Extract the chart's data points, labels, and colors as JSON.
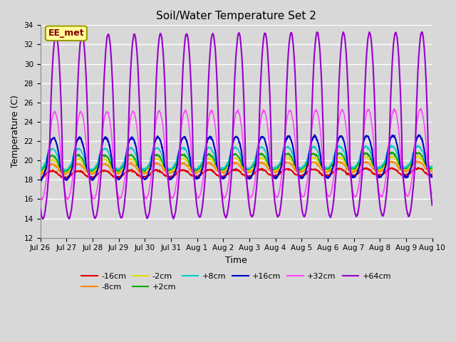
{
  "title": "Soil/Water Temperature Set 2",
  "xlabel": "Time",
  "ylabel": "Temperature (C)",
  "ylim": [
    12,
    34
  ],
  "yticks": [
    12,
    14,
    16,
    18,
    20,
    22,
    24,
    26,
    28,
    30,
    32,
    34
  ],
  "background_color": "#d8d8d8",
  "plot_bg_color": "#d8d8d8",
  "annotation_text": "EE_met",
  "annotation_bg": "#ffff99",
  "annotation_border": "#999900",
  "series_order": [
    "-16cm",
    "-8cm",
    "-2cm",
    "+2cm",
    "+8cm",
    "+16cm",
    "+32cm",
    "+64cm"
  ],
  "series": {
    "-16cm": {
      "color": "#dd0000",
      "base": 18.5,
      "amp_up": 0.4,
      "amp_down": 0.3,
      "period": 1.0,
      "phase_shift": 0.05
    },
    "-8cm": {
      "color": "#ff8800",
      "base": 19.0,
      "amp_up": 0.6,
      "amp_down": 0.4,
      "period": 1.0,
      "phase_shift": 0.05
    },
    "-2cm": {
      "color": "#dddd00",
      "base": 19.3,
      "amp_up": 0.8,
      "amp_down": 0.5,
      "period": 1.0,
      "phase_shift": 0.05
    },
    "+2cm": {
      "color": "#00aa00",
      "base": 19.5,
      "amp_up": 1.0,
      "amp_down": 0.6,
      "period": 1.0,
      "phase_shift": 0.05
    },
    "+8cm": {
      "color": "#00cccc",
      "base": 19.8,
      "amp_up": 1.4,
      "amp_down": 0.8,
      "period": 1.0,
      "phase_shift": 0.04
    },
    "+16cm": {
      "color": "#0000cc",
      "base": 19.5,
      "amp_up": 2.8,
      "amp_down": 1.5,
      "period": 1.0,
      "phase_shift": 0.0
    },
    "+32cm": {
      "color": "#ff44ff",
      "base": 19.5,
      "amp_up": 5.5,
      "amp_down": 3.5,
      "period": 1.0,
      "phase_shift": -0.05
    },
    "+64cm": {
      "color": "#9900cc",
      "base": 19.5,
      "amp_up": 13.5,
      "amp_down": 5.5,
      "period": 1.0,
      "phase_shift": -0.1
    }
  },
  "x_tick_labels": [
    "Jul 26",
    "Jul 27",
    "Jul 28",
    "Jul 29",
    "Jul 30",
    "Jul 31",
    "Aug 1",
    "Aug 2",
    "Aug 3",
    "Aug 4",
    "Aug 5",
    "Aug 6",
    "Aug 7",
    "Aug 8",
    "Aug 9",
    "Aug 10"
  ],
  "x_tick_positions": [
    0,
    1,
    2,
    3,
    4,
    5,
    6,
    7,
    8,
    9,
    10,
    11,
    12,
    13,
    14,
    15
  ],
  "n_points": 1500
}
